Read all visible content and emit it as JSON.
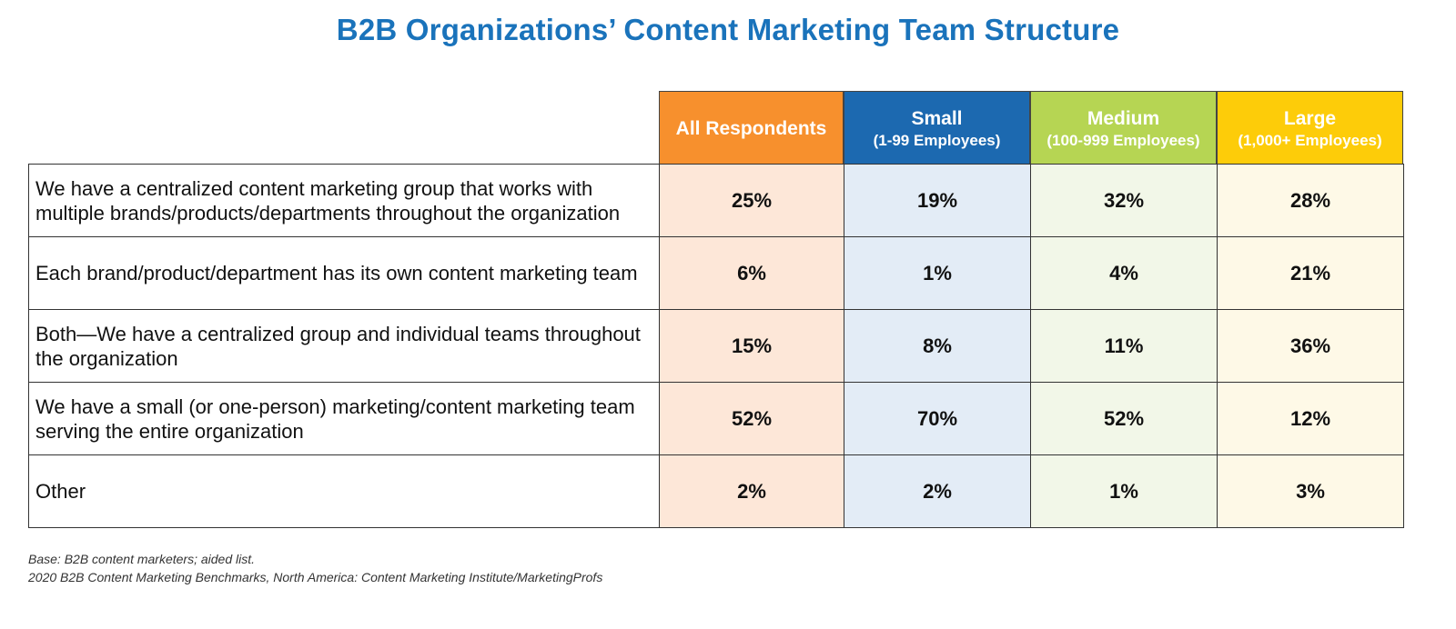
{
  "title": "B2B Organizations’ Content Marketing Team Structure",
  "chart_data": {
    "type": "table",
    "title": "B2B Organizations’ Content Marketing Team Structure",
    "columns": [
      {
        "name": "All Respondents",
        "sub": "",
        "color": "#f7902d",
        "tint": "#fde7d8"
      },
      {
        "name": "Small",
        "sub": "(1-99 Employees)",
        "color": "#1c69b0",
        "tint": "#e3ecf6"
      },
      {
        "name": "Medium",
        "sub": "(100-999 Employees)",
        "color": "#b6d553",
        "tint": "#f2f7e8"
      },
      {
        "name": "Large",
        "sub": "(1,000+ Employees)",
        "color": "#fdcc09",
        "tint": "#fef9e7"
      }
    ],
    "rows": [
      {
        "label": "We have a centralized content marketing group that works with multiple brands/products/departments throughout the organization",
        "values": [
          "25%",
          "19%",
          "32%",
          "28%"
        ]
      },
      {
        "label": "Each brand/product/department has its own content marketing team",
        "values": [
          "6%",
          "1%",
          "4%",
          "21%"
        ]
      },
      {
        "label": "Both—We have a centralized group and individual teams throughout the organization",
        "values": [
          "15%",
          "8%",
          "11%",
          "36%"
        ]
      },
      {
        "label": "We have a small (or one-person) marketing/content marketing team serving the entire organization",
        "values": [
          "52%",
          "70%",
          "52%",
          "12%"
        ]
      },
      {
        "label": "Other",
        "values": [
          "2%",
          "2%",
          "1%",
          "3%"
        ]
      }
    ]
  },
  "footer": {
    "base": "Base: B2B content marketers; aided list.",
    "source": "2020 B2B Content Marketing Benchmarks, North America: Content Marketing Institute/MarketingProfs"
  }
}
